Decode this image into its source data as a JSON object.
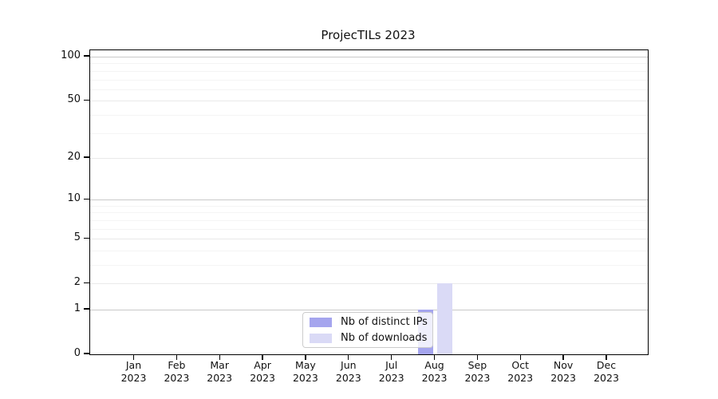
{
  "title": "ProjecTILs 2023",
  "chart_data": {
    "type": "bar",
    "title": "ProjecTILs 2023",
    "x_months": [
      "Jan",
      "Feb",
      "Mar",
      "Apr",
      "May",
      "Jun",
      "Jul",
      "Aug",
      "Sep",
      "Oct",
      "Nov",
      "Dec"
    ],
    "x_year": "2023",
    "series": [
      {
        "name": "Nb of distinct IPs",
        "color": "#a5a5ee",
        "values": [
          0,
          0,
          0,
          0,
          0,
          0,
          0,
          1,
          0,
          0,
          0,
          0
        ]
      },
      {
        "name": "Nb of downloads",
        "color": "#dadaf6",
        "values": [
          0,
          0,
          0,
          0,
          0,
          0,
          0,
          2,
          0,
          0,
          0,
          0
        ]
      }
    ],
    "yscale": "log1p",
    "ylim": [
      0,
      100
    ],
    "yticks": [
      0,
      1,
      2,
      5,
      10,
      20,
      50,
      100
    ],
    "minor_gridlines": [
      3,
      4,
      6,
      7,
      8,
      9,
      30,
      40,
      60,
      70,
      80,
      90
    ],
    "grid": "horizontal",
    "legend_position": "inside-bottom-center"
  },
  "colors": {
    "grid_power10": "#c9c9c9",
    "grid_major": "#e9e9e9",
    "grid_minor": "#f4f4f4",
    "axis": "#000000",
    "background": "#ffffff"
  }
}
